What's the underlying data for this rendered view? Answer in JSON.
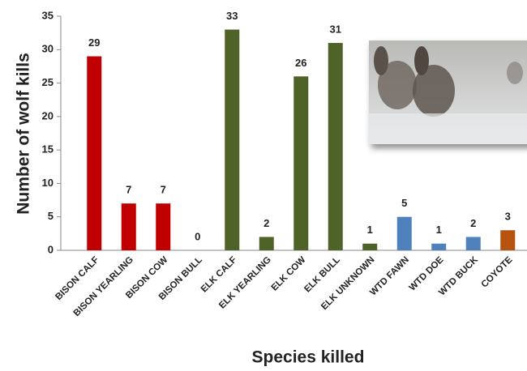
{
  "chart_data": {
    "type": "bar",
    "x_label": "Species killed",
    "y_label": "Number of wolf kills",
    "categories": [
      "BISON CALF",
      "BISON YEARLING",
      "BISON COW",
      "BISON BULL",
      "ELK CALF",
      "ELK YEARLING",
      "ELK COW",
      "ELK BULL",
      "ELK UNKNOWN",
      "WTD FAWN",
      "WTD DOE",
      "WTD BUCK",
      "COYOTE"
    ],
    "values": [
      29,
      7,
      7,
      0,
      33,
      2,
      26,
      31,
      1,
      5,
      1,
      2,
      3
    ],
    "colors": [
      "#c00000",
      "#c00000",
      "#c00000",
      "#c00000",
      "#4f6228",
      "#4f6228",
      "#4f6228",
      "#4f6228",
      "#4f6228",
      "#4f81bd",
      "#4f81bd",
      "#4f81bd",
      "#b5530f"
    ],
    "ylim": [
      0,
      35
    ],
    "yticks": [
      0,
      5,
      10,
      15,
      20,
      25,
      30,
      35
    ],
    "grid": false
  }
}
